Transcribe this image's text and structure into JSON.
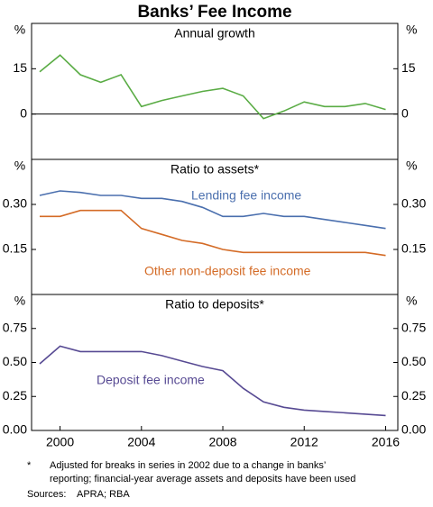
{
  "title": "Banks’ Fee Income",
  "chart_data": [
    {
      "type": "line",
      "title": "Annual growth",
      "y_unit": "%",
      "x": [
        1999,
        2000,
        2001,
        2002,
        2003,
        2004,
        2005,
        2006,
        2007,
        2008,
        2009,
        2010,
        2011,
        2012,
        2013,
        2014,
        2015,
        2016
      ],
      "xlim": [
        1998.6,
        2016.6
      ],
      "ylim": [
        -15,
        30
      ],
      "yticks": [
        15,
        0
      ],
      "zero_line": true,
      "series": [
        {
          "color": "#5aac45",
          "values": [
            14,
            19.5,
            13,
            10.5,
            13,
            2.5,
            4.5,
            6,
            7.5,
            8.5,
            6,
            -1.5,
            1,
            4,
            2.5,
            2.5,
            3.5,
            1.5
          ]
        }
      ]
    },
    {
      "type": "line",
      "title": "Ratio to assets*",
      "y_unit": "%",
      "x": [
        1999,
        2000,
        2001,
        2002,
        2003,
        2004,
        2005,
        2006,
        2007,
        2008,
        2009,
        2010,
        2011,
        2012,
        2013,
        2014,
        2015,
        2016
      ],
      "xlim": [
        1998.6,
        2016.6
      ],
      "ylim": [
        0,
        0.45
      ],
      "yticks": [
        {
          "value": 0.3,
          "label": "0.30"
        },
        0.15
      ],
      "series": [
        {
          "name": "Lending fee income",
          "color": "#4a6fae",
          "values": [
            0.33,
            0.345,
            0.34,
            0.33,
            0.33,
            0.32,
            0.32,
            0.31,
            0.29,
            0.26,
            0.26,
            0.27,
            0.26,
            0.26,
            0.25,
            0.24,
            0.23,
            0.22
          ]
        },
        {
          "name": "Other non-deposit fee income",
          "color": "#d46b26",
          "values": [
            0.26,
            0.26,
            0.28,
            0.28,
            0.28,
            0.22,
            0.2,
            0.18,
            0.17,
            0.15,
            0.14,
            0.14,
            0.14,
            0.14,
            0.14,
            0.14,
            0.14,
            0.13
          ]
        }
      ]
    },
    {
      "type": "line",
      "title": "Ratio to deposits*",
      "y_unit": "%",
      "x": [
        1999,
        2000,
        2001,
        2002,
        2003,
        2004,
        2005,
        2006,
        2007,
        2008,
        2009,
        2010,
        2011,
        2012,
        2013,
        2014,
        2015,
        2016
      ],
      "xlim": [
        1998.6,
        2016.6
      ],
      "ylim": [
        0,
        1.0
      ],
      "yticks": [
        0.75,
        {
          "value": 0.5,
          "label": "0.50"
        },
        0.25,
        {
          "value": 0,
          "label": "0.00"
        }
      ],
      "xticks": [
        2000,
        2004,
        2008,
        2012,
        2016
      ],
      "series": [
        {
          "name": "Deposit fee income",
          "color": "#574a93",
          "values": [
            0.49,
            0.62,
            0.58,
            0.58,
            0.58,
            0.58,
            0.55,
            0.51,
            0.47,
            0.44,
            0.31,
            0.21,
            0.17,
            0.15,
            0.14,
            0.13,
            0.12,
            0.11
          ]
        }
      ]
    }
  ],
  "notes": {
    "marker": "*",
    "lines": [
      "Adjusted for breaks in series in 2002 due to a change in banks’",
      "reporting; financial-year average assets and deposits have been used"
    ]
  },
  "source": {
    "label": "Sources:",
    "text": "APRA; RBA"
  }
}
